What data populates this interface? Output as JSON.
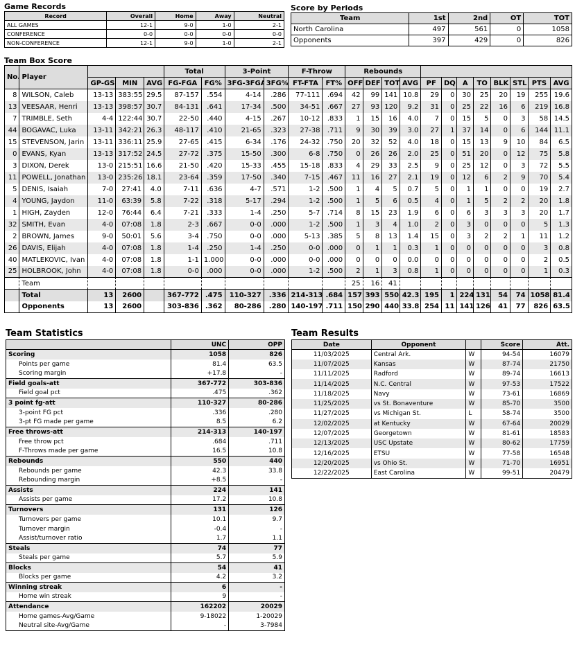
{
  "game_records": {
    "title": "Game Records",
    "headers": [
      "Record",
      "Overall",
      "Home",
      "Away",
      "Neutral"
    ],
    "rows": [
      [
        "ALL GAMES",
        "12-1",
        "9-0",
        "1-0",
        "2-1"
      ],
      [
        "CONFERENCE",
        "0-0",
        "0-0",
        "0-0",
        "0-0"
      ],
      [
        "NON-CONFERENCE",
        "12-1",
        "9-0",
        "1-0",
        "2-1"
      ]
    ]
  },
  "score_by_periods": {
    "title": "Score by Periods",
    "headers": [
      "Team",
      "1st",
      "2nd",
      "OT",
      "TOT"
    ],
    "rows": [
      [
        "North Carolina",
        "497",
        "561",
        "0",
        "1058"
      ],
      [
        "Opponents",
        "397",
        "429",
        "0",
        "826"
      ]
    ]
  },
  "box_score": {
    "title": "Team Box Score",
    "group_headers": [
      "No.",
      "Player",
      "Total",
      "3-Point",
      "F-Throw",
      "Rebounds"
    ],
    "col_headers": [
      "GP-GS",
      "MIN",
      "AVG",
      "FG-FGA",
      "FG%",
      "3FG-3FGA",
      "3FG%",
      "FT-FTA",
      "FT%",
      "OFF",
      "DEF",
      "TOT",
      "AVG",
      "PF",
      "DQ",
      "A",
      "TO",
      "BLK",
      "STL",
      "PTS",
      "AVG"
    ],
    "players": [
      [
        "8",
        "WILSON, Caleb",
        "13-13",
        "383:55",
        "29.5",
        "87-157",
        ".554",
        "4-14",
        ".286",
        "77-111",
        ".694",
        "42",
        "99",
        "141",
        "10.8",
        "29",
        "0",
        "30",
        "25",
        "20",
        "19",
        "255",
        "19.6"
      ],
      [
        "13",
        "VEESAAR, Henri",
        "13-13",
        "398:57",
        "30.7",
        "84-131",
        ".641",
        "17-34",
        ".500",
        "34-51",
        ".667",
        "27",
        "93",
        "120",
        "9.2",
        "31",
        "0",
        "25",
        "22",
        "16",
        "6",
        "219",
        "16.8"
      ],
      [
        "7",
        "TRIMBLE, Seth",
        "4-4",
        "122:44",
        "30.7",
        "22-50",
        ".440",
        "4-15",
        ".267",
        "10-12",
        ".833",
        "1",
        "15",
        "16",
        "4.0",
        "7",
        "0",
        "15",
        "5",
        "0",
        "3",
        "58",
        "14.5"
      ],
      [
        "44",
        "BOGAVAC, Luka",
        "13-11",
        "342:21",
        "26.3",
        "48-117",
        ".410",
        "21-65",
        ".323",
        "27-38",
        ".711",
        "9",
        "30",
        "39",
        "3.0",
        "27",
        "1",
        "37",
        "14",
        "0",
        "6",
        "144",
        "11.1"
      ],
      [
        "15",
        "STEVENSON, Jarin",
        "13-11",
        "336:11",
        "25.9",
        "27-65",
        ".415",
        "6-34",
        ".176",
        "24-32",
        ".750",
        "20",
        "32",
        "52",
        "4.0",
        "18",
        "0",
        "15",
        "13",
        "9",
        "10",
        "84",
        "6.5"
      ],
      [
        "0",
        "EVANS, Kyan",
        "13-13",
        "317:52",
        "24.5",
        "27-72",
        ".375",
        "15-50",
        ".300",
        "6-8",
        ".750",
        "0",
        "26",
        "26",
        "2.0",
        "25",
        "0",
        "51",
        "20",
        "0",
        "12",
        "75",
        "5.8"
      ],
      [
        "3",
        "DIXON, Derek",
        "13-0",
        "215:51",
        "16.6",
        "21-50",
        ".420",
        "15-33",
        ".455",
        "15-18",
        ".833",
        "4",
        "29",
        "33",
        "2.5",
        "9",
        "0",
        "25",
        "12",
        "0",
        "3",
        "72",
        "5.5"
      ],
      [
        "11",
        "POWELL, Jonathan",
        "13-0",
        "235:26",
        "18.1",
        "23-64",
        ".359",
        "17-50",
        ".340",
        "7-15",
        ".467",
        "11",
        "16",
        "27",
        "2.1",
        "19",
        "0",
        "12",
        "6",
        "2",
        "9",
        "70",
        "5.4"
      ],
      [
        "5",
        "DENIS, Isaiah",
        "7-0",
        "27:41",
        "4.0",
        "7-11",
        ".636",
        "4-7",
        ".571",
        "1-2",
        ".500",
        "1",
        "4",
        "5",
        "0.7",
        "5",
        "0",
        "1",
        "1",
        "0",
        "0",
        "19",
        "2.7"
      ],
      [
        "4",
        "YOUNG, Jaydon",
        "11-0",
        "63:39",
        "5.8",
        "7-22",
        ".318",
        "5-17",
        ".294",
        "1-2",
        ".500",
        "1",
        "5",
        "6",
        "0.5",
        "4",
        "0",
        "1",
        "5",
        "2",
        "2",
        "20",
        "1.8"
      ],
      [
        "1",
        "HIGH, Zayden",
        "12-0",
        "76:44",
        "6.4",
        "7-21",
        ".333",
        "1-4",
        ".250",
        "5-7",
        ".714",
        "8",
        "15",
        "23",
        "1.9",
        "6",
        "0",
        "6",
        "3",
        "3",
        "3",
        "20",
        "1.7"
      ],
      [
        "32",
        "SMITH, Evan",
        "4-0",
        "07:08",
        "1.8",
        "2-3",
        ".667",
        "0-0",
        ".000",
        "1-2",
        ".500",
        "1",
        "3",
        "4",
        "1.0",
        "2",
        "0",
        "3",
        "0",
        "0",
        "0",
        "5",
        "1.3"
      ],
      [
        "2",
        "BROWN, James",
        "9-0",
        "50:01",
        "5.6",
        "3-4",
        ".750",
        "0-0",
        ".000",
        "5-13",
        ".385",
        "5",
        "8",
        "13",
        "1.4",
        "15",
        "0",
        "3",
        "2",
        "2",
        "1",
        "11",
        "1.2"
      ],
      [
        "26",
        "DAVIS, Elijah",
        "4-0",
        "07:08",
        "1.8",
        "1-4",
        ".250",
        "1-4",
        ".250",
        "0-0",
        ".000",
        "0",
        "1",
        "1",
        "0.3",
        "1",
        "0",
        "0",
        "0",
        "0",
        "0",
        "3",
        "0.8"
      ],
      [
        "40",
        "MATLEKOVIC, Ivan",
        "4-0",
        "07:08",
        "1.8",
        "1-1",
        "1.000",
        "0-0",
        ".000",
        "0-0",
        ".000",
        "0",
        "0",
        "0",
        "0.0",
        "0",
        "0",
        "0",
        "0",
        "0",
        "0",
        "2",
        "0.5"
      ],
      [
        "25",
        "HOLBROOK, John",
        "4-0",
        "07:08",
        "1.8",
        "0-0",
        ".000",
        "0-0",
        ".000",
        "1-2",
        ".500",
        "2",
        "1",
        "3",
        "0.8",
        "1",
        "0",
        "0",
        "0",
        "0",
        "0",
        "1",
        "0.3"
      ]
    ],
    "team_row": [
      "",
      "Team",
      "",
      "",
      "",
      "",
      "",
      "",
      "",
      "",
      "",
      "25",
      "16",
      "41",
      "",
      "",
      "",
      "",
      "",
      "",
      "",
      "",
      ""
    ],
    "total_row": [
      "",
      "Total",
      "13",
      "2600",
      "",
      "367-772",
      ".475",
      "110-327",
      ".336",
      "214-313",
      ".684",
      "157",
      "393",
      "550",
      "42.3",
      "195",
      "1",
      "224",
      "131",
      "54",
      "74",
      "1058",
      "81.4"
    ],
    "opp_row": [
      "",
      "Opponents",
      "13",
      "2600",
      "",
      "303-836",
      ".362",
      "80-286",
      ".280",
      "140-197",
      ".711",
      "150",
      "290",
      "440",
      "33.8",
      "254",
      "11",
      "141",
      "126",
      "41",
      "77",
      "826",
      "63.5"
    ]
  },
  "team_statistics": {
    "title": "Team Statistics",
    "headers": [
      "",
      "UNC",
      "OPP"
    ],
    "rows": [
      [
        "cat",
        "Scoring",
        "1058",
        "826"
      ],
      [
        "sub",
        "Points per game",
        "81.4",
        "63.5"
      ],
      [
        "sub",
        "Scoring margin",
        "+17.8",
        "-"
      ],
      [
        "cat",
        "Field goals-att",
        "367-772",
        "303-836"
      ],
      [
        "sub",
        "Field goal pct",
        ".475",
        ".362"
      ],
      [
        "cat",
        "3 point fg-att",
        "110-327",
        "80-286"
      ],
      [
        "sub",
        "3-point FG pct",
        ".336",
        ".280"
      ],
      [
        "sub",
        "3-pt FG made per game",
        "8.5",
        "6.2"
      ],
      [
        "cat",
        "Free throws-att",
        "214-313",
        "140-197"
      ],
      [
        "sub",
        "Free throw pct",
        ".684",
        ".711"
      ],
      [
        "sub",
        "F-Throws made per game",
        "16.5",
        "10.8"
      ],
      [
        "cat",
        "Rebounds",
        "550",
        "440"
      ],
      [
        "sub",
        "Rebounds per game",
        "42.3",
        "33.8"
      ],
      [
        "sub",
        "Rebounding margin",
        "+8.5",
        "-"
      ],
      [
        "cat",
        "Assists",
        "224",
        "141"
      ],
      [
        "sub",
        "Assists per game",
        "17.2",
        "10.8"
      ],
      [
        "cat",
        "Turnovers",
        "131",
        "126"
      ],
      [
        "sub",
        "Turnovers per game",
        "10.1",
        "9.7"
      ],
      [
        "sub",
        "Turnover margin",
        "-0.4",
        "-"
      ],
      [
        "sub",
        "Assist/turnover ratio",
        "1.7",
        "1.1"
      ],
      [
        "cat",
        "Steals",
        "74",
        "77"
      ],
      [
        "sub",
        "Steals per game",
        "5.7",
        "5.9"
      ],
      [
        "cat",
        "Blocks",
        "54",
        "41"
      ],
      [
        "sub",
        "Blocks per game",
        "4.2",
        "3.2"
      ],
      [
        "cat",
        "Winning streak",
        "6",
        "-"
      ],
      [
        "sub",
        "Home win streak",
        "9",
        "-"
      ],
      [
        "cat",
        "Attendance",
        "162202",
        "20029"
      ],
      [
        "sub",
        "Home games-Avg/Game",
        "9-18022",
        "1-20029"
      ],
      [
        "sub",
        "Neutral site-Avg/Game",
        "-",
        "3-7984"
      ]
    ]
  },
  "team_results": {
    "title": "Team Results",
    "headers": [
      "Date",
      "Opponent",
      "",
      "Score",
      "Att."
    ],
    "rows": [
      [
        "11/03/2025",
        "Central Ark.",
        "W",
        "94-54",
        "16079"
      ],
      [
        "11/07/2025",
        "Kansas",
        "W",
        "87-74",
        "21750"
      ],
      [
        "11/11/2025",
        "Radford",
        "W",
        "89-74",
        "16613"
      ],
      [
        "11/14/2025",
        "N.C. Central",
        "W",
        "97-53",
        "17522"
      ],
      [
        "11/18/2025",
        "Navy",
        "W",
        "73-61",
        "16869"
      ],
      [
        "11/25/2025",
        "vs St. Bonaventure",
        "W",
        "85-70",
        "3500"
      ],
      [
        "11/27/2025",
        "vs Michigan St.",
        "L",
        "58-74",
        "3500"
      ],
      [
        "12/02/2025",
        "at Kentucky",
        "W",
        "67-64",
        "20029"
      ],
      [
        "12/07/2025",
        "Georgetown",
        "W",
        "81-61",
        "18583"
      ],
      [
        "12/13/2025",
        "USC Upstate",
        "W",
        "80-62",
        "17759"
      ],
      [
        "12/16/2025",
        "ETSU",
        "W",
        "77-58",
        "16548"
      ],
      [
        "12/20/2025",
        "vs Ohio St.",
        "W",
        "71-70",
        "16951"
      ],
      [
        "12/22/2025",
        "East Carolina",
        "W",
        "99-51",
        "20479"
      ]
    ]
  }
}
